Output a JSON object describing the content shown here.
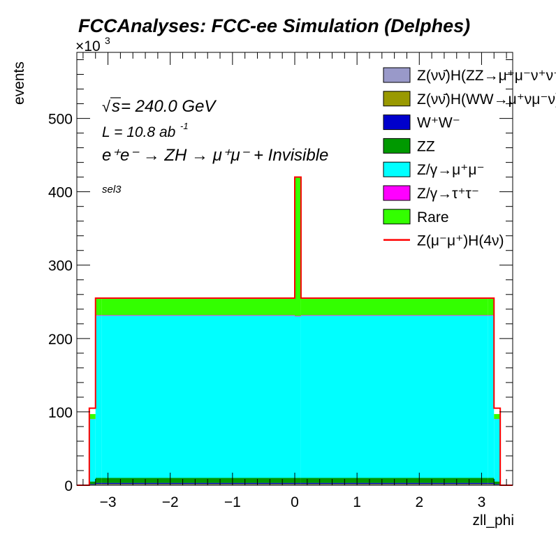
{
  "chart_data": {
    "type": "bar",
    "stacked": true,
    "histogram": true,
    "title": "FCCAnalyses: FCC-ee Simulation (Delphes)",
    "xlabel": "zll_phi",
    "ylabel": "events",
    "y_multiplier": "×10",
    "y_multiplier_exponent": "3",
    "xlim": [
      -3.5,
      3.5
    ],
    "ylim": [
      0,
      590000
    ],
    "x_ticks": [
      -3,
      -2,
      -1,
      0,
      1,
      2,
      3
    ],
    "x_tick_labels": [
      "−3",
      "−2",
      "−1",
      "0",
      "1",
      "2",
      "3"
    ],
    "y_ticks": [
      0,
      100000,
      200000,
      300000,
      400000,
      500000
    ],
    "y_tick_labels": [
      "0",
      "100",
      "200",
      "300",
      "400",
      "500"
    ],
    "bin_edges": [
      -3.3,
      -3.2,
      -3.1,
      0.0,
      0.1,
      3.1,
      3.2,
      3.3
    ],
    "bin_note": "",
    "series": [
      {
        "name": "Z(νν̄)H(ZZ→μ⁺μ⁻ν⁺ν⁻)",
        "color": "#9999c9",
        "values": [
          400,
          900,
          900,
          900,
          900,
          900,
          400
        ]
      },
      {
        "name": "Z(νν̄)H(WW→μ⁺νμ⁻ν)",
        "color": "#999900",
        "values": [
          400,
          800,
          800,
          800,
          800,
          800,
          400
        ]
      },
      {
        "name": "W⁺W⁻",
        "color": "#0000cc",
        "values": [
          800,
          1500,
          1500,
          1500,
          1500,
          1500,
          800
        ]
      },
      {
        "name": "ZZ",
        "color": "#009900",
        "values": [
          3500,
          6800,
          6800,
          6800,
          6800,
          6800,
          3500
        ]
      },
      {
        "name": "Z/γ→μ⁺μ⁻",
        "color": "#00ffff",
        "values": [
          85000,
          221000,
          221000,
          220000,
          221000,
          221000,
          85000
        ]
      },
      {
        "name": "Z/γ→τ⁺τ⁻",
        "color": "#ff00ff",
        "values": [
          300,
          800,
          800,
          800,
          800,
          800,
          300
        ]
      },
      {
        "name": "Rare",
        "color": "#33ff00",
        "values": [
          6600,
          22200,
          22200,
          189200,
          22200,
          22200,
          6600
        ]
      }
    ],
    "overlay": {
      "name": "Z(μ⁻μ⁺)H(4ν)",
      "color": "#ff0000",
      "values": [
        105000,
        255000,
        255000,
        420000,
        255000,
        255000,
        105000
      ]
    },
    "legend_placement": "top-right",
    "grid": false
  },
  "annotations": {
    "sqrt_symbol": "√",
    "s_label": "s",
    "energy": " = 240.0 GeV",
    "lumi": "L = 10.8 ab",
    "lumi_exp": "-1",
    "process": "e⁺e⁻ → ZH → μ⁺μ⁻ + Invisible",
    "selection": "sel3"
  }
}
